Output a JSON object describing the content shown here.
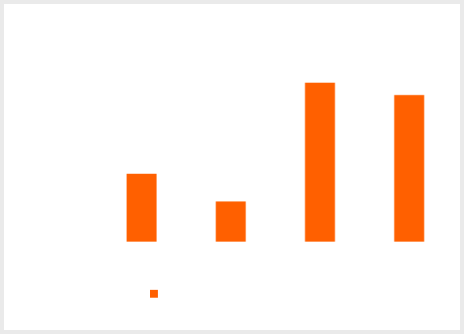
{
  "colors": {
    "bar": "#ff6000",
    "background": "#ffffff",
    "frame": "#eaeaea"
  },
  "chart_data": {
    "type": "bar",
    "categories": [
      "",
      "",
      "",
      ""
    ],
    "series": [
      {
        "values": [
          44,
          26,
          103,
          95
        ]
      }
    ],
    "ylim": [
      0,
      110
    ],
    "grid": false,
    "axes_visible": false,
    "legend": "bottom-left",
    "legend_entries": [
      ""
    ],
    "title": "",
    "xlabel": "",
    "ylabel": ""
  }
}
